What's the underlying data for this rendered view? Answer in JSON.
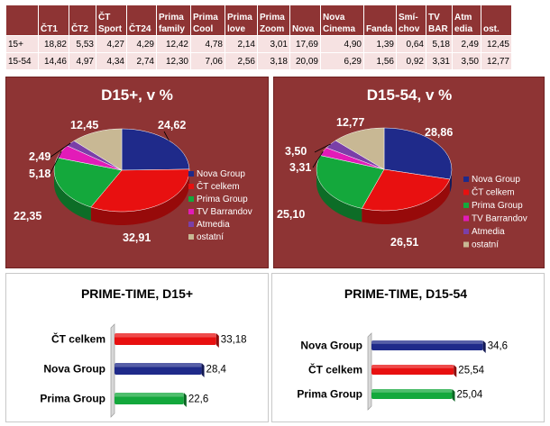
{
  "table": {
    "columns": [
      "",
      "ČT1",
      "ČT2",
      "ČT Sport",
      "ČT24",
      "Prima family",
      "Prima Cool",
      "Prima love",
      "Prima Zoom",
      "Nova",
      "Nova Cinema",
      "Fanda",
      "Smí-chov",
      "TV BAR",
      "Atm edia",
      "ost."
    ],
    "rows": [
      {
        "label": "15+",
        "values": [
          "18,82",
          "5,53",
          "4,27",
          "4,29",
          "12,42",
          "4,78",
          "2,14",
          "3,01",
          "17,69",
          "4,90",
          "1,39",
          "0,64",
          "5,18",
          "2,49",
          "12,45"
        ]
      },
      {
        "label": "15-54",
        "values": [
          "14,46",
          "4,97",
          "4,34",
          "2,74",
          "12,30",
          "7,06",
          "2,56",
          "3,18",
          "20,09",
          "6,29",
          "1,56",
          "0,92",
          "3,31",
          "3,50",
          "12,77"
        ]
      }
    ]
  },
  "colors": {
    "nova": "#1f2a8a",
    "ct": "#e81010",
    "prima": "#14a83c",
    "tvbar": "#e21bb8",
    "atmedia": "#7a3fa8",
    "ostatni": "#c8b894",
    "panel_bg": "#8e3434"
  },
  "chart_data": [
    {
      "type": "pie",
      "title": "D15+, v %",
      "legend_position": "right",
      "labels": [
        "Nova Group",
        "ČT celkem",
        "Prima Group",
        "TV Barrandov",
        "Atmedia",
        "ostatní"
      ],
      "values": [
        24.62,
        32.91,
        22.35,
        5.18,
        2.49,
        12.45
      ],
      "value_labels": [
        "24,62",
        "32,91",
        "22,35",
        "5,18",
        "2,49",
        "12,45"
      ]
    },
    {
      "type": "pie",
      "title": "D15-54, v %",
      "legend_position": "right",
      "labels": [
        "Nova Group",
        "ČT celkem",
        "Prima Group",
        "TV Barrandov",
        "Atmedia",
        "ostatní"
      ],
      "values": [
        28.86,
        26.51,
        25.1,
        3.31,
        3.5,
        12.77
      ],
      "value_labels": [
        "28,86",
        "26,51",
        "25,10",
        "3,31",
        "3,50",
        "12,77"
      ]
    },
    {
      "type": "bar",
      "orientation": "horizontal",
      "title": "PRIME-TIME, D15+",
      "categories": [
        "ČT celkem",
        "Nova Group",
        "Prima Group"
      ],
      "values": [
        33.18,
        28.4,
        22.6
      ],
      "value_labels": [
        "33,18",
        "28,4",
        "22,6"
      ],
      "bar_colors": [
        "ct",
        "nova",
        "prima"
      ],
      "xlim": [
        0,
        40
      ]
    },
    {
      "type": "bar",
      "orientation": "horizontal",
      "title": "PRIME-TIME, D15-54",
      "categories": [
        "Nova Group",
        "ČT celkem",
        "Prima Group"
      ],
      "values": [
        34.6,
        25.54,
        25.04
      ],
      "value_labels": [
        "34,6",
        "25,54",
        "25,04"
      ],
      "bar_colors": [
        "nova",
        "ct",
        "prima"
      ],
      "xlim": [
        0,
        40
      ]
    }
  ]
}
